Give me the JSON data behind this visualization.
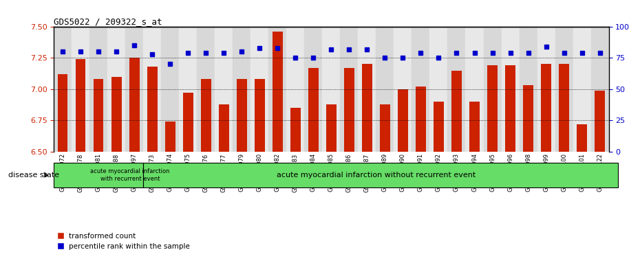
{
  "title": "GDS5022 / 209322_s_at",
  "categories": [
    "GSM1167072",
    "GSM1167078",
    "GSM1167081",
    "GSM1167088",
    "GSM1167097",
    "GSM1167073",
    "GSM1167074",
    "GSM1167075",
    "GSM1167076",
    "GSM1167077",
    "GSM1167079",
    "GSM1167080",
    "GSM1167082",
    "GSM1167083",
    "GSM1167084",
    "GSM1167085",
    "GSM1167086",
    "GSM1167087",
    "GSM1167089",
    "GSM1167090",
    "GSM1167091",
    "GSM1167092",
    "GSM1167093",
    "GSM1167094",
    "GSM1167095",
    "GSM1167096",
    "GSM1167098",
    "GSM1167099",
    "GSM1167100",
    "GSM1167101",
    "GSM1167122"
  ],
  "bar_values": [
    7.12,
    7.24,
    7.08,
    7.1,
    7.25,
    7.18,
    6.74,
    6.97,
    7.08,
    6.88,
    7.08,
    7.08,
    7.46,
    6.85,
    7.17,
    6.88,
    7.17,
    7.2,
    6.88,
    7.0,
    7.02,
    6.9,
    7.15,
    6.9,
    7.19,
    7.19,
    7.03,
    7.2,
    7.2,
    6.72,
    6.99
  ],
  "blue_values": [
    80,
    80,
    80,
    80,
    85,
    78,
    70,
    79,
    79,
    79,
    80,
    83,
    83,
    75,
    75,
    82,
    82,
    82,
    75,
    75,
    79,
    75,
    79,
    79,
    79,
    79,
    79,
    84,
    79,
    79,
    79
  ],
  "group1_count": 5,
  "group1_label": "acute myocardial infarction\nwith recurrent event",
  "group2_label": "acute myocardial infarction without recurrent event",
  "ylim_left": [
    6.5,
    7.5
  ],
  "ylim_right": [
    0,
    100
  ],
  "yticks_left": [
    6.5,
    6.75,
    7.0,
    7.25,
    7.5
  ],
  "yticks_right": [
    0,
    25,
    50,
    75,
    100
  ],
  "bar_color": "#cc2200",
  "dot_color": "#0000cc",
  "group_bg": "#66dd66",
  "legend_red_label": "transformed count",
  "legend_blue_label": "percentile rank within the sample",
  "disease_state_label": "disease state"
}
